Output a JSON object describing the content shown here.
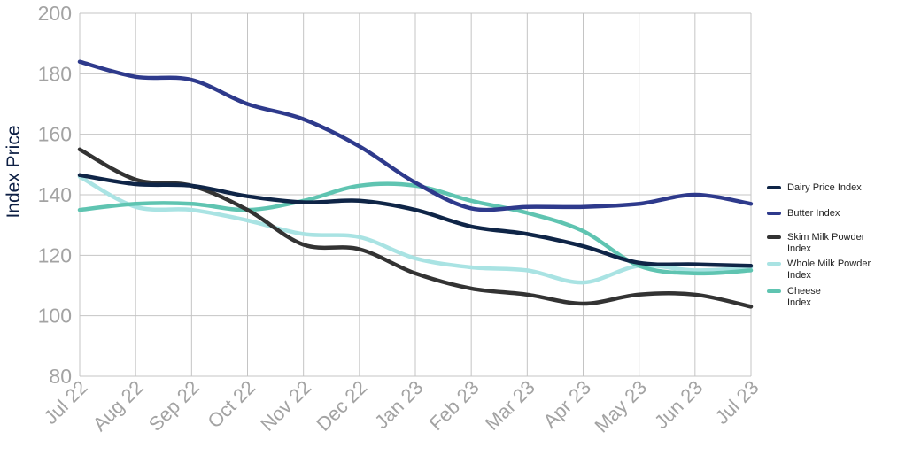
{
  "chart_data": {
    "type": "line",
    "ylabel": "Index Price",
    "xlabel": "",
    "ylim": [
      80,
      200
    ],
    "yticks": [
      80,
      100,
      120,
      140,
      160,
      180,
      200
    ],
    "grid": true,
    "legend_position": "right",
    "categories": [
      "Jul 22",
      "Aug 22",
      "Sep 22",
      "Oct 22",
      "Nov 22",
      "Dec 22",
      "Jan 23",
      "Feb 23",
      "Mar 23",
      "Apr 23",
      "May 23",
      "Jun 23",
      "Jul 23"
    ],
    "series": [
      {
        "name": "Dairy Price Index",
        "color": "#0f2547",
        "values": [
          146.5,
          143.5,
          143.0,
          139.5,
          137.5,
          138.0,
          135.0,
          129.5,
          127.0,
          123.0,
          117.5,
          117.0,
          116.5
        ]
      },
      {
        "name": "Butter Index",
        "color": "#2e3a8c",
        "values": [
          184.0,
          179.0,
          178.0,
          170.0,
          165.0,
          156.0,
          144.0,
          135.5,
          136.0,
          136.0,
          137.0,
          140.0,
          137.0
        ]
      },
      {
        "name": "Skim Milk Powder Index",
        "color": "#333333",
        "values": [
          155.0,
          145.0,
          143.0,
          135.0,
          123.5,
          122.0,
          114.0,
          109.0,
          107.0,
          104.0,
          107.0,
          107.0,
          103.0
        ]
      },
      {
        "name": "Whole Milk Powder Index",
        "color": "#a9e3e3",
        "values": [
          146.0,
          136.0,
          135.0,
          131.5,
          127.0,
          126.0,
          119.0,
          116.0,
          115.0,
          111.0,
          116.5,
          115.0,
          116.0
        ]
      },
      {
        "name": "Cheese Index",
        "color": "#5fc4b1",
        "values": [
          135.0,
          137.0,
          137.0,
          135.0,
          138.0,
          143.0,
          143.0,
          138.0,
          134.0,
          128.0,
          116.5,
          114.0,
          115.0
        ]
      }
    ]
  }
}
